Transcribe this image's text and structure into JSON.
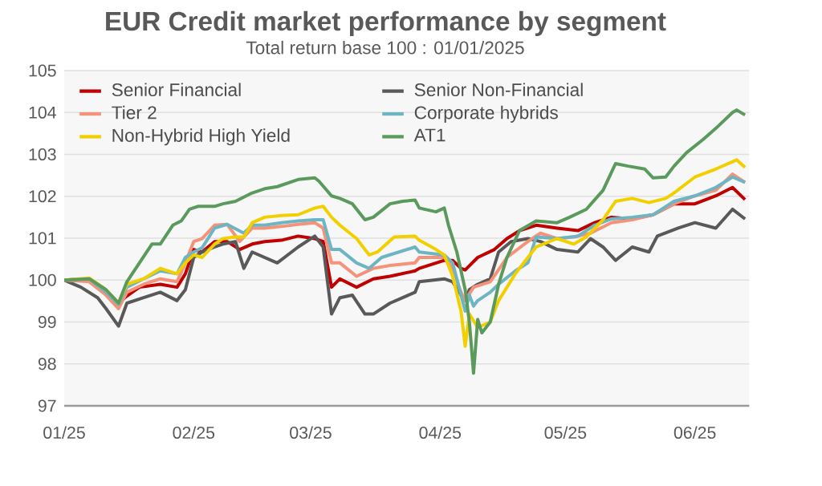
{
  "chart_data": {
    "type": "line",
    "title": "EUR Credit market performance by segment",
    "subtitle": "Total return base 100 : 01/01/2025",
    "xlim": [
      "2025-01-01",
      "2025-06-14"
    ],
    "xticks": [
      {
        "value": "2025-01-01",
        "label": "01/25"
      },
      {
        "value": "2025-02-01",
        "label": "02/25"
      },
      {
        "value": "2025-03-01",
        "label": "03/25"
      },
      {
        "value": "2025-04-01",
        "label": "04/25"
      },
      {
        "value": "2025-05-01",
        "label": "05/25"
      },
      {
        "value": "2025-06-01",
        "label": "06/25"
      }
    ],
    "ylim": [
      97,
      105
    ],
    "yticks": [
      97,
      98,
      99,
      100,
      101,
      102,
      103,
      104,
      105
    ],
    "grid": "y",
    "legend": "top left",
    "marker": "none",
    "line_style": "solid",
    "series": [
      {
        "name": "Senior Financial",
        "color": "#c00000",
        "x": [
          "2025-01-01",
          "2025-01-07",
          "2025-01-11",
          "2025-01-14",
          "2025-01-16",
          "2025-01-19",
          "2025-01-24",
          "2025-01-28",
          "2025-01-30",
          "2025-02-01",
          "2025-02-03",
          "2025-02-06",
          "2025-02-09",
          "2025-02-12",
          "2025-02-15",
          "2025-02-18",
          "2025-02-22",
          "2025-02-26",
          "2025-03-02",
          "2025-03-04",
          "2025-03-06",
          "2025-03-08",
          "2025-03-12",
          "2025-03-16",
          "2025-03-20",
          "2025-03-26",
          "2025-03-27",
          "2025-04-02",
          "2025-04-04",
          "2025-04-06",
          "2025-04-07",
          "2025-04-10",
          "2025-04-14",
          "2025-04-17",
          "2025-04-20",
          "2025-04-24",
          "2025-04-29",
          "2025-05-04",
          "2025-05-08",
          "2025-05-12",
          "2025-05-17",
          "2025-05-22",
          "2025-05-27",
          "2025-06-01",
          "2025-06-06",
          "2025-06-10",
          "2025-06-13"
        ],
        "values": [
          100.0,
          100.03,
          99.67,
          99.45,
          99.62,
          99.83,
          99.9,
          99.83,
          100.15,
          100.73,
          100.67,
          100.92,
          100.92,
          100.73,
          100.86,
          100.92,
          100.95,
          101.05,
          100.99,
          100.92,
          99.83,
          100.03,
          99.83,
          100.03,
          100.09,
          100.22,
          100.28,
          100.47,
          100.47,
          100.28,
          100.24,
          100.54,
          100.73,
          100.99,
          101.18,
          101.31,
          101.24,
          101.18,
          101.37,
          101.5,
          101.46,
          101.56,
          101.82,
          101.82,
          102.01,
          102.21,
          101.92
        ]
      },
      {
        "name": "Senior Non-Financial",
        "color": "#595959",
        "x": [
          "2025-01-01",
          "2025-01-05",
          "2025-01-09",
          "2025-01-11",
          "2025-01-14",
          "2025-01-16",
          "2025-01-20",
          "2025-01-24",
          "2025-01-28",
          "2025-01-30",
          "2025-02-01",
          "2025-02-03",
          "2025-02-06",
          "2025-02-08",
          "2025-02-11",
          "2025-02-13",
          "2025-02-15",
          "2025-02-18",
          "2025-02-21",
          "2025-02-26",
          "2025-03-02",
          "2025-03-04",
          "2025-03-06",
          "2025-03-08",
          "2025-03-11",
          "2025-03-14",
          "2025-03-16",
          "2025-03-20",
          "2025-03-26",
          "2025-03-27",
          "2025-04-02",
          "2025-04-04",
          "2025-04-06",
          "2025-04-07",
          "2025-04-08",
          "2025-04-10",
          "2025-04-13",
          "2025-04-15",
          "2025-04-18",
          "2025-04-22",
          "2025-04-25",
          "2025-04-29",
          "2025-05-04",
          "2025-05-07",
          "2025-05-10",
          "2025-05-13",
          "2025-05-17",
          "2025-05-21",
          "2025-05-23",
          "2025-05-28",
          "2025-06-01",
          "2025-06-06",
          "2025-06-10",
          "2025-06-13"
        ],
        "values": [
          100.0,
          99.83,
          99.58,
          99.32,
          98.9,
          99.45,
          99.58,
          99.71,
          99.51,
          99.77,
          100.54,
          100.67,
          100.79,
          100.86,
          100.92,
          100.28,
          100.67,
          100.54,
          100.41,
          100.79,
          101.05,
          100.79,
          99.19,
          99.58,
          99.64,
          99.19,
          99.19,
          99.45,
          99.71,
          99.96,
          100.03,
          99.96,
          99.64,
          99.51,
          99.77,
          99.9,
          100.03,
          100.67,
          100.92,
          100.99,
          100.92,
          100.73,
          100.67,
          100.99,
          100.79,
          100.47,
          100.79,
          100.67,
          101.05,
          101.24,
          101.37,
          101.24,
          101.69,
          101.46
        ]
      },
      {
        "name": "Tier 2",
        "color": "#f4927a",
        "x": [
          "2025-01-01",
          "2025-01-07",
          "2025-01-11",
          "2025-01-14",
          "2025-01-16",
          "2025-01-20",
          "2025-01-24",
          "2025-01-28",
          "2025-01-30",
          "2025-02-01",
          "2025-02-03",
          "2025-02-06",
          "2025-02-09",
          "2025-02-12",
          "2025-02-15",
          "2025-02-18",
          "2025-02-22",
          "2025-02-26",
          "2025-03-02",
          "2025-03-04",
          "2025-03-06",
          "2025-03-08",
          "2025-03-12",
          "2025-03-16",
          "2025-03-20",
          "2025-03-26",
          "2025-03-27",
          "2025-04-02",
          "2025-04-04",
          "2025-04-06",
          "2025-04-07",
          "2025-04-09",
          "2025-04-13",
          "2025-04-17",
          "2025-04-22",
          "2025-04-25",
          "2025-04-29",
          "2025-05-03",
          "2025-05-07",
          "2025-05-12",
          "2025-05-17",
          "2025-05-22",
          "2025-05-27",
          "2025-06-01",
          "2025-06-06",
          "2025-06-10",
          "2025-06-13"
        ],
        "values": [
          100.0,
          99.96,
          99.64,
          99.32,
          99.71,
          99.9,
          100.03,
          99.96,
          100.41,
          100.92,
          100.99,
          101.31,
          101.33,
          100.92,
          101.24,
          101.24,
          101.28,
          101.33,
          101.37,
          101.24,
          100.41,
          100.41,
          100.09,
          100.28,
          100.35,
          100.41,
          100.54,
          100.54,
          100.28,
          99.71,
          99.51,
          99.83,
          99.96,
          100.54,
          100.92,
          101.12,
          100.99,
          101.03,
          101.12,
          101.37,
          101.44,
          101.56,
          101.82,
          102.01,
          102.14,
          102.53,
          102.33
        ]
      },
      {
        "name": "Corporate hybrids",
        "color": "#6db5c3",
        "x": [
          "2025-01-01",
          "2025-01-07",
          "2025-01-11",
          "2025-01-14",
          "2025-01-16",
          "2025-01-20",
          "2025-01-24",
          "2025-01-28",
          "2025-01-30",
          "2025-02-01",
          "2025-02-03",
          "2025-02-06",
          "2025-02-09",
          "2025-02-13",
          "2025-02-15",
          "2025-02-18",
          "2025-02-22",
          "2025-02-26",
          "2025-03-02",
          "2025-03-04",
          "2025-03-06",
          "2025-03-08",
          "2025-03-12",
          "2025-03-15",
          "2025-03-18",
          "2025-03-26",
          "2025-03-27",
          "2025-04-02",
          "2025-04-04",
          "2025-04-06",
          "2025-04-07",
          "2025-04-08",
          "2025-04-09",
          "2025-04-10",
          "2025-04-13",
          "2025-04-15",
          "2025-04-19",
          "2025-04-22",
          "2025-04-24",
          "2025-04-29",
          "2025-05-04",
          "2025-05-08",
          "2025-05-12",
          "2025-05-17",
          "2025-05-22",
          "2025-05-27",
          "2025-06-01",
          "2025-06-06",
          "2025-06-10",
          "2025-06-13"
        ],
        "values": [
          100.0,
          100.03,
          99.71,
          99.42,
          99.83,
          100.03,
          100.22,
          100.15,
          100.54,
          100.67,
          100.77,
          101.24,
          101.33,
          101.12,
          101.31,
          101.31,
          101.37,
          101.41,
          101.44,
          101.44,
          100.73,
          100.73,
          100.41,
          100.28,
          100.54,
          100.79,
          100.67,
          100.6,
          100.41,
          99.64,
          99.26,
          99.64,
          99.38,
          99.51,
          99.71,
          99.9,
          100.22,
          100.41,
          101.03,
          100.99,
          101.05,
          101.31,
          101.46,
          101.5,
          101.56,
          101.88,
          102.01,
          102.21,
          102.46,
          102.33
        ]
      },
      {
        "name": "Non-Hybrid High Yield",
        "color": "#f2d000",
        "x": [
          "2025-01-01",
          "2025-01-07",
          "2025-01-11",
          "2025-01-14",
          "2025-01-16",
          "2025-01-20",
          "2025-01-24",
          "2025-01-28",
          "2025-01-30",
          "2025-02-01",
          "2025-02-03",
          "2025-02-06",
          "2025-02-08",
          "2025-02-11",
          "2025-02-13",
          "2025-02-15",
          "2025-02-18",
          "2025-02-22",
          "2025-02-26",
          "2025-03-02",
          "2025-03-04",
          "2025-03-06",
          "2025-03-08",
          "2025-03-12",
          "2025-03-15",
          "2025-03-17",
          "2025-03-21",
          "2025-03-26",
          "2025-03-27",
          "2025-03-31",
          "2025-04-02",
          "2025-04-04",
          "2025-04-06",
          "2025-04-07",
          "2025-04-08",
          "2025-04-10",
          "2025-04-13",
          "2025-04-15",
          "2025-04-19",
          "2025-04-22",
          "2025-04-24",
          "2025-04-29",
          "2025-05-03",
          "2025-05-06",
          "2025-05-10",
          "2025-05-13",
          "2025-05-17",
          "2025-05-21",
          "2025-05-25",
          "2025-05-27",
          "2025-06-01",
          "2025-06-06",
          "2025-06-11",
          "2025-06-13"
        ],
        "values": [
          100.0,
          100.05,
          99.77,
          99.45,
          99.9,
          100.03,
          100.28,
          100.15,
          100.41,
          100.6,
          100.54,
          100.86,
          100.99,
          101.03,
          101.03,
          101.37,
          101.5,
          101.54,
          101.56,
          101.72,
          101.76,
          101.5,
          101.31,
          100.99,
          100.6,
          100.67,
          101.03,
          101.05,
          100.95,
          100.73,
          100.6,
          100.09,
          99.26,
          98.42,
          99.19,
          98.87,
          99.0,
          99.51,
          100.15,
          100.54,
          100.79,
          100.99,
          100.86,
          101.03,
          101.44,
          101.88,
          101.95,
          101.85,
          101.95,
          102.08,
          102.46,
          102.65,
          102.87,
          102.69
        ]
      },
      {
        "name": "AT1",
        "color": "#5b9a5d",
        "x": [
          "2025-01-01",
          "2025-01-07",
          "2025-01-11",
          "2025-01-14",
          "2025-01-16",
          "2025-01-19",
          "2025-01-22",
          "2025-01-24",
          "2025-01-27",
          "2025-01-29",
          "2025-01-31",
          "2025-02-02",
          "2025-02-06",
          "2025-02-08",
          "2025-02-11",
          "2025-02-15",
          "2025-02-18",
          "2025-02-21",
          "2025-02-26",
          "2025-03-02",
          "2025-03-03",
          "2025-03-06",
          "2025-03-08",
          "2025-03-11",
          "2025-03-14",
          "2025-03-16",
          "2025-03-20",
          "2025-03-23",
          "2025-03-26",
          "2025-03-27",
          "2025-03-31",
          "2025-04-02",
          "2025-04-03",
          "2025-04-05",
          "2025-04-07",
          "2025-04-08",
          "2025-04-09",
          "2025-04-10",
          "2025-04-11",
          "2025-04-13",
          "2025-04-15",
          "2025-04-17",
          "2025-04-20",
          "2025-04-24",
          "2025-04-29",
          "2025-05-02",
          "2025-05-06",
          "2025-05-10",
          "2025-05-13",
          "2025-05-16",
          "2025-05-20",
          "2025-05-22",
          "2025-05-25",
          "2025-05-27",
          "2025-05-30",
          "2025-06-03",
          "2025-06-06",
          "2025-06-10",
          "2025-06-11",
          "2025-06-13"
        ],
        "values": [
          100.0,
          100.03,
          99.77,
          99.45,
          99.96,
          100.41,
          100.86,
          100.86,
          101.31,
          101.41,
          101.69,
          101.76,
          101.76,
          101.82,
          101.88,
          102.08,
          102.18,
          102.23,
          102.4,
          102.44,
          102.36,
          102.01,
          101.95,
          101.82,
          101.44,
          101.5,
          101.82,
          101.88,
          101.91,
          101.72,
          101.63,
          101.72,
          101.31,
          100.67,
          99.77,
          99.0,
          97.78,
          99.06,
          98.74,
          99.0,
          99.9,
          100.54,
          101.18,
          101.41,
          101.37,
          101.5,
          101.69,
          102.14,
          102.78,
          102.72,
          102.65,
          102.44,
          102.46,
          102.72,
          103.04,
          103.36,
          103.62,
          104.0,
          104.06,
          103.94
        ]
      }
    ]
  }
}
